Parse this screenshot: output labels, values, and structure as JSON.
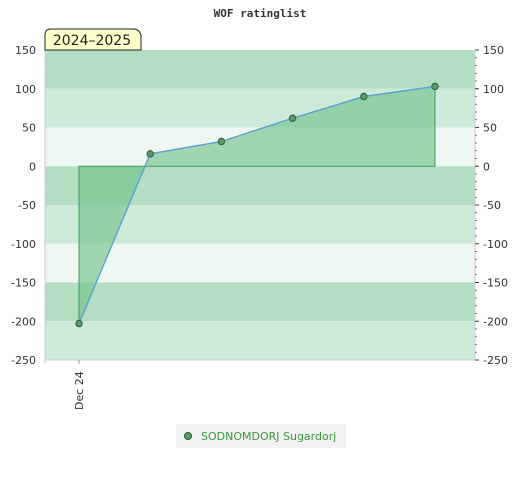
{
  "chart_data": {
    "type": "area",
    "title": "WOF ratinglist",
    "season_label": "2024–2025",
    "x_tick_labels": [
      "Dec 24"
    ],
    "ylim": [
      -250,
      150
    ],
    "y_ticks": [
      -250,
      -200,
      -150,
      -100,
      -50,
      0,
      50,
      100,
      150
    ],
    "series": [
      {
        "name": "SODNOMDORJ Sugardorj",
        "values": [
          -203,
          16,
          32,
          62,
          90,
          103
        ]
      }
    ],
    "legend_position": "bottom",
    "grid": "alternating green bands",
    "colors": {
      "band_dark": "#b3dec3",
      "band_mid": "#cde9d7",
      "band_light": "#eef7f1",
      "area_fill": "#6cbf84",
      "area_stroke": "#3c9a55",
      "line": "#5aa0d8",
      "marker": "#5c9a6a",
      "season_bg": "#ffffcc"
    }
  }
}
